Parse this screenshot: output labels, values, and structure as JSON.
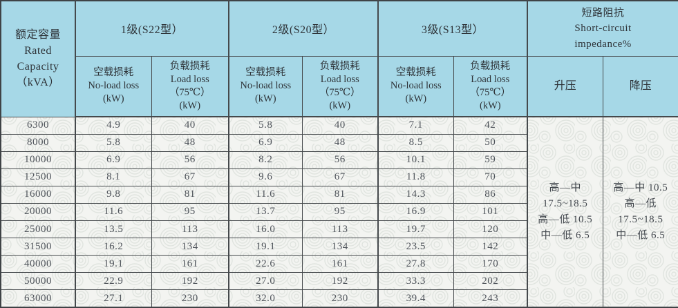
{
  "table": {
    "capacity_header": "额定容量\nRated\nCapacity\n（kVA）",
    "groups": [
      {
        "label": "1级(S22型）"
      },
      {
        "label": "2级(S20型）"
      },
      {
        "label": "3级(S13型）"
      }
    ],
    "noload_header": "空载损耗\nNo-load loss\n(kW)",
    "load_header": "负载损耗\nLoad loss\n（75℃）\n(kW)",
    "impedance_header": "短路阻抗\nShort-circuit\nimpedance%",
    "stepup_header": "升压",
    "stepdown_header": "降压",
    "stepup_value": "高—中\n17.5~18.5\n高—低 10.5\n中—低 6.5",
    "stepdown_value": "高—中 10.5\n高—低\n17.5~18.5\n中—低 6.5",
    "rows": [
      {
        "capacity": "6300",
        "values": [
          "4.9",
          "40",
          "5.8",
          "40",
          "7.1",
          "42"
        ]
      },
      {
        "capacity": "8000",
        "values": [
          "5.8",
          "48",
          "6.9",
          "48",
          "8.5",
          "50"
        ]
      },
      {
        "capacity": "10000",
        "values": [
          "6.9",
          "56",
          "8.2",
          "56",
          "10.1",
          "59"
        ]
      },
      {
        "capacity": "12500",
        "values": [
          "8.1",
          "67",
          "9.6",
          "67",
          "11.8",
          "70"
        ]
      },
      {
        "capacity": "16000",
        "values": [
          "9.8",
          "81",
          "11.6",
          "81",
          "14.3",
          "86"
        ]
      },
      {
        "capacity": "20000",
        "values": [
          "11.6",
          "95",
          "13.7",
          "95",
          "16.9",
          "101"
        ]
      },
      {
        "capacity": "25000",
        "values": [
          "13.5",
          "113",
          "16.0",
          "113",
          "19.7",
          "120"
        ]
      },
      {
        "capacity": "31500",
        "values": [
          "16.2",
          "134",
          "19.1",
          "134",
          "23.5",
          "142"
        ]
      },
      {
        "capacity": "40000",
        "values": [
          "19.1",
          "161",
          "22.6",
          "161",
          "27.8",
          "170"
        ]
      },
      {
        "capacity": "50000",
        "values": [
          "22.9",
          "192",
          "27.0",
          "192",
          "33.3",
          "202"
        ]
      },
      {
        "capacity": "63000",
        "values": [
          "27.1",
          "230",
          "32.0",
          "230",
          "39.4",
          "243"
        ]
      }
    ]
  },
  "colors": {
    "header_bg": "#a6d8e7",
    "body_bg": "#f3f4f1",
    "texture_stroke": "#e0e4df",
    "border": "#45494c",
    "header_text": "#2e3338",
    "data_text": "#4e535a"
  }
}
